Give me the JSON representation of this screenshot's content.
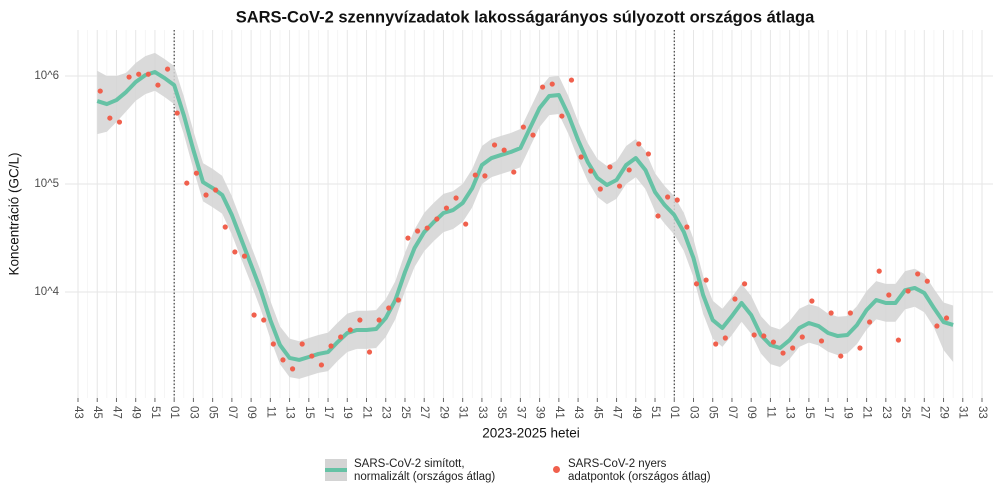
{
  "chart_data": {
    "type": "line",
    "title": "SARS-CoV-2 szennyvízadatok lakosságarányos súlyozott országos átlaga",
    "x_label": "2023-2025 hetei",
    "y_label": "Koncentráció (GC/L)",
    "log_scale": true,
    "grid": true,
    "legend": "bottom",
    "categories": [
      "43",
      null,
      "45",
      null,
      "47",
      null,
      "49",
      null,
      "51",
      null,
      "01",
      null,
      "03",
      null,
      "05",
      null,
      "07",
      null,
      "09",
      null,
      "11",
      null,
      "13",
      null,
      "15",
      null,
      "17",
      null,
      "19",
      null,
      "21",
      null,
      "23",
      null,
      "25",
      null,
      "27",
      null,
      "29",
      null,
      "31",
      null,
      "33",
      null,
      "35",
      null,
      "37",
      null,
      "39",
      null,
      "41",
      null,
      "43",
      null,
      "45",
      null,
      "47",
      null,
      "49",
      null,
      "51",
      null,
      "01",
      null,
      "03",
      null,
      "05",
      null,
      "07",
      null,
      "09",
      null,
      "11",
      null,
      "13",
      null,
      "15",
      null,
      "17",
      null,
      "19",
      null,
      "21",
      null,
      "23",
      null,
      "25",
      null,
      "27",
      null,
      "29",
      null,
      "31",
      null,
      "33"
    ],
    "ylim": [
      1043,
      2670000
    ],
    "yticks": [
      {
        "value": 10000,
        "label": "10^4"
      },
      {
        "value": 100000,
        "label": "10^5"
      },
      {
        "value": 1000000,
        "label": "10^6"
      }
    ],
    "series": [
      {
        "name": "SARS-CoV-2 simított,\n normalizált (országos átlag)",
        "type": "line",
        "color": "#66c2a5",
        "band_color": "#d4d4d4",
        "values": [
          null,
          null,
          587000,
          550000,
          599000,
          711000,
          880000,
          1020000,
          1090000,
          958000,
          825000,
          435000,
          206000,
          104000,
          91800,
          79100,
          51600,
          30300,
          17800,
          10400,
          5500,
          3230,
          2450,
          2350,
          2500,
          2670,
          2780,
          3440,
          4170,
          4450,
          4450,
          4540,
          5740,
          8430,
          15300,
          25600,
          35900,
          44500,
          53900,
          57400,
          66700,
          91800,
          150000,
          174000,
          186000,
          198000,
          215000,
          330000,
          506000,
          653000,
          667000,
          435000,
          255000,
          160000,
          114000,
          97900,
          109000,
          150000,
          174000,
          135000,
          84300,
          63900,
          51600,
          35900,
          20600,
          9380,
          5500,
          4640,
          6000,
          7910,
          6120,
          4000,
          3230,
          3030,
          3590,
          4640,
          5160,
          4840,
          4170,
          3910,
          4000,
          4950,
          6810,
          8430,
          7910,
          7910,
          10400,
          10900,
          9790,
          7110,
          5270,
          4950,
          null,
          null,
          null
        ],
        "lower": [
          null,
          null,
          290000,
          305000,
          375000,
          470000,
          590000,
          680000,
          730000,
          640000,
          550000,
          290000,
          137000,
          69000,
          61000,
          53000,
          34000,
          20000,
          11900,
          6900,
          3700,
          2150,
          1630,
          1570,
          1670,
          1780,
          1850,
          2300,
          2780,
          2970,
          2970,
          3030,
          3830,
          5600,
          10200,
          17100,
          23900,
          29700,
          35900,
          38300,
          44500,
          61000,
          100000,
          116000,
          124000,
          132000,
          143000,
          220000,
          337000,
          435000,
          445000,
          290000,
          170000,
          107000,
          76000,
          65000,
          73000,
          100000,
          116000,
          90000,
          56000,
          43000,
          34000,
          24000,
          13700,
          6300,
          3700,
          3100,
          4000,
          5300,
          4100,
          2700,
          2150,
          2020,
          2400,
          3100,
          3400,
          3200,
          2800,
          2600,
          2700,
          3300,
          4500,
          5600,
          5300,
          5300,
          6900,
          7300,
          6500,
          4700,
          2900,
          2250,
          null,
          null,
          null
        ],
        "upper": [
          null,
          null,
          1120000,
          1000000,
          1000000,
          1070000,
          1320000,
          1530000,
          1640000,
          1440000,
          1240000,
          650000,
          310000,
          156000,
          138000,
          119000,
          77000,
          45000,
          26700,
          15600,
          8300,
          4800,
          3700,
          3500,
          3750,
          4000,
          4200,
          5200,
          6300,
          6700,
          6700,
          6800,
          8600,
          12600,
          23000,
          38000,
          54000,
          67000,
          81000,
          86000,
          100000,
          138000,
          225000,
          261000,
          279000,
          297000,
          323000,
          495000,
          760000,
          980000,
          1000000,
          650000,
          380000,
          240000,
          171000,
          147000,
          164000,
          225000,
          261000,
          203000,
          126000,
          96000,
          77000,
          54000,
          31000,
          14100,
          8300,
          7000,
          9000,
          11900,
          9200,
          6000,
          4800,
          4500,
          5400,
          7000,
          7700,
          7300,
          6300,
          5900,
          6000,
          7400,
          10200,
          12600,
          11900,
          11900,
          15600,
          16400,
          14700,
          10700,
          8000,
          7500,
          null,
          null,
          null
        ]
      },
      {
        "name": "SARS-CoV-2 nyers\n adatpontok (országos átlag)",
        "type": "scatter",
        "color": "#f0604d",
        "values": [
          null,
          null,
          726000,
          408000,
          375000,
          979000,
          1040000,
          1040000,
          825000,
          1160000,
          454000,
          102000,
          126000,
          79100,
          88000,
          40000,
          23500,
          21500,
          6120,
          5500,
          3300,
          2350,
          1940,
          3300,
          2550,
          2110,
          3160,
          3830,
          4450,
          5500,
          2780,
          5500,
          7110,
          8430,
          31600,
          36700,
          39100,
          47400,
          59900,
          74200,
          42600,
          121000,
          119000,
          230000,
          206000,
          129000,
          337000,
          284000,
          791000,
          843000,
          426000,
          918000,
          178000,
          132000,
          89900,
          144000,
          95800,
          135000,
          235000,
          190000,
          50600,
          75800,
          71100,
          40000,
          11900,
          12900,
          3300,
          3750,
          8610,
          11900,
          4000,
          3910,
          3440,
          2720,
          3030,
          3830,
          8250,
          3520,
          6390,
          2550,
          6390,
          3030,
          5270,
          15600,
          9380,
          3590,
          10200,
          14700,
          12600,
          4840,
          5740,
          null,
          null,
          null,
          null
        ]
      }
    ]
  }
}
